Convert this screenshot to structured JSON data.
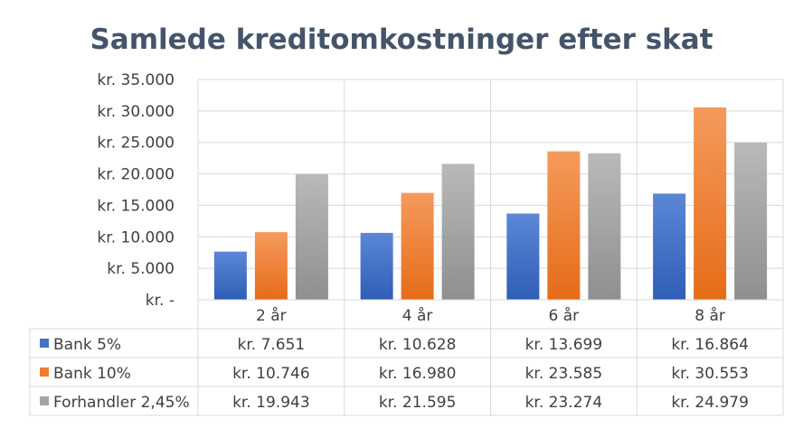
{
  "chart_data": {
    "type": "bar",
    "title": "Samlede kreditomkostninger efter skat",
    "categories": [
      "2 år",
      "4 år",
      "6 år",
      "8 år"
    ],
    "ylim": [
      0,
      35000
    ],
    "y_ticks": [
      0,
      5000,
      10000,
      15000,
      20000,
      25000,
      30000,
      35000
    ],
    "y_tick_labels": [
      "kr. -",
      "kr. 5.000",
      "kr. 10.000",
      "kr. 15.000",
      "kr. 20.000",
      "kr. 25.000",
      "kr. 30.000",
      "kr. 35.000"
    ],
    "grid": true,
    "legend": "data-table",
    "series": [
      {
        "name": "Bank 5%",
        "color": "#4472c4",
        "values": [
          7651,
          10628,
          13699,
          16864
        ],
        "labels": [
          "kr. 7.651",
          "kr. 10.628",
          "kr. 13.699",
          "kr. 16.864"
        ]
      },
      {
        "name": "Bank 10%",
        "color": "#ed7d31",
        "values": [
          10746,
          16980,
          23585,
          30553
        ],
        "labels": [
          "kr. 10.746",
          "kr. 16.980",
          "kr. 23.585",
          "kr. 30.553"
        ]
      },
      {
        "name": "Forhandler 2,45%",
        "color": "#a5a5a5",
        "values": [
          19943,
          21595,
          23274,
          24979
        ],
        "labels": [
          "kr. 19.943",
          "kr. 21.595",
          "kr. 23.274",
          "kr. 24.979"
        ]
      }
    ]
  }
}
